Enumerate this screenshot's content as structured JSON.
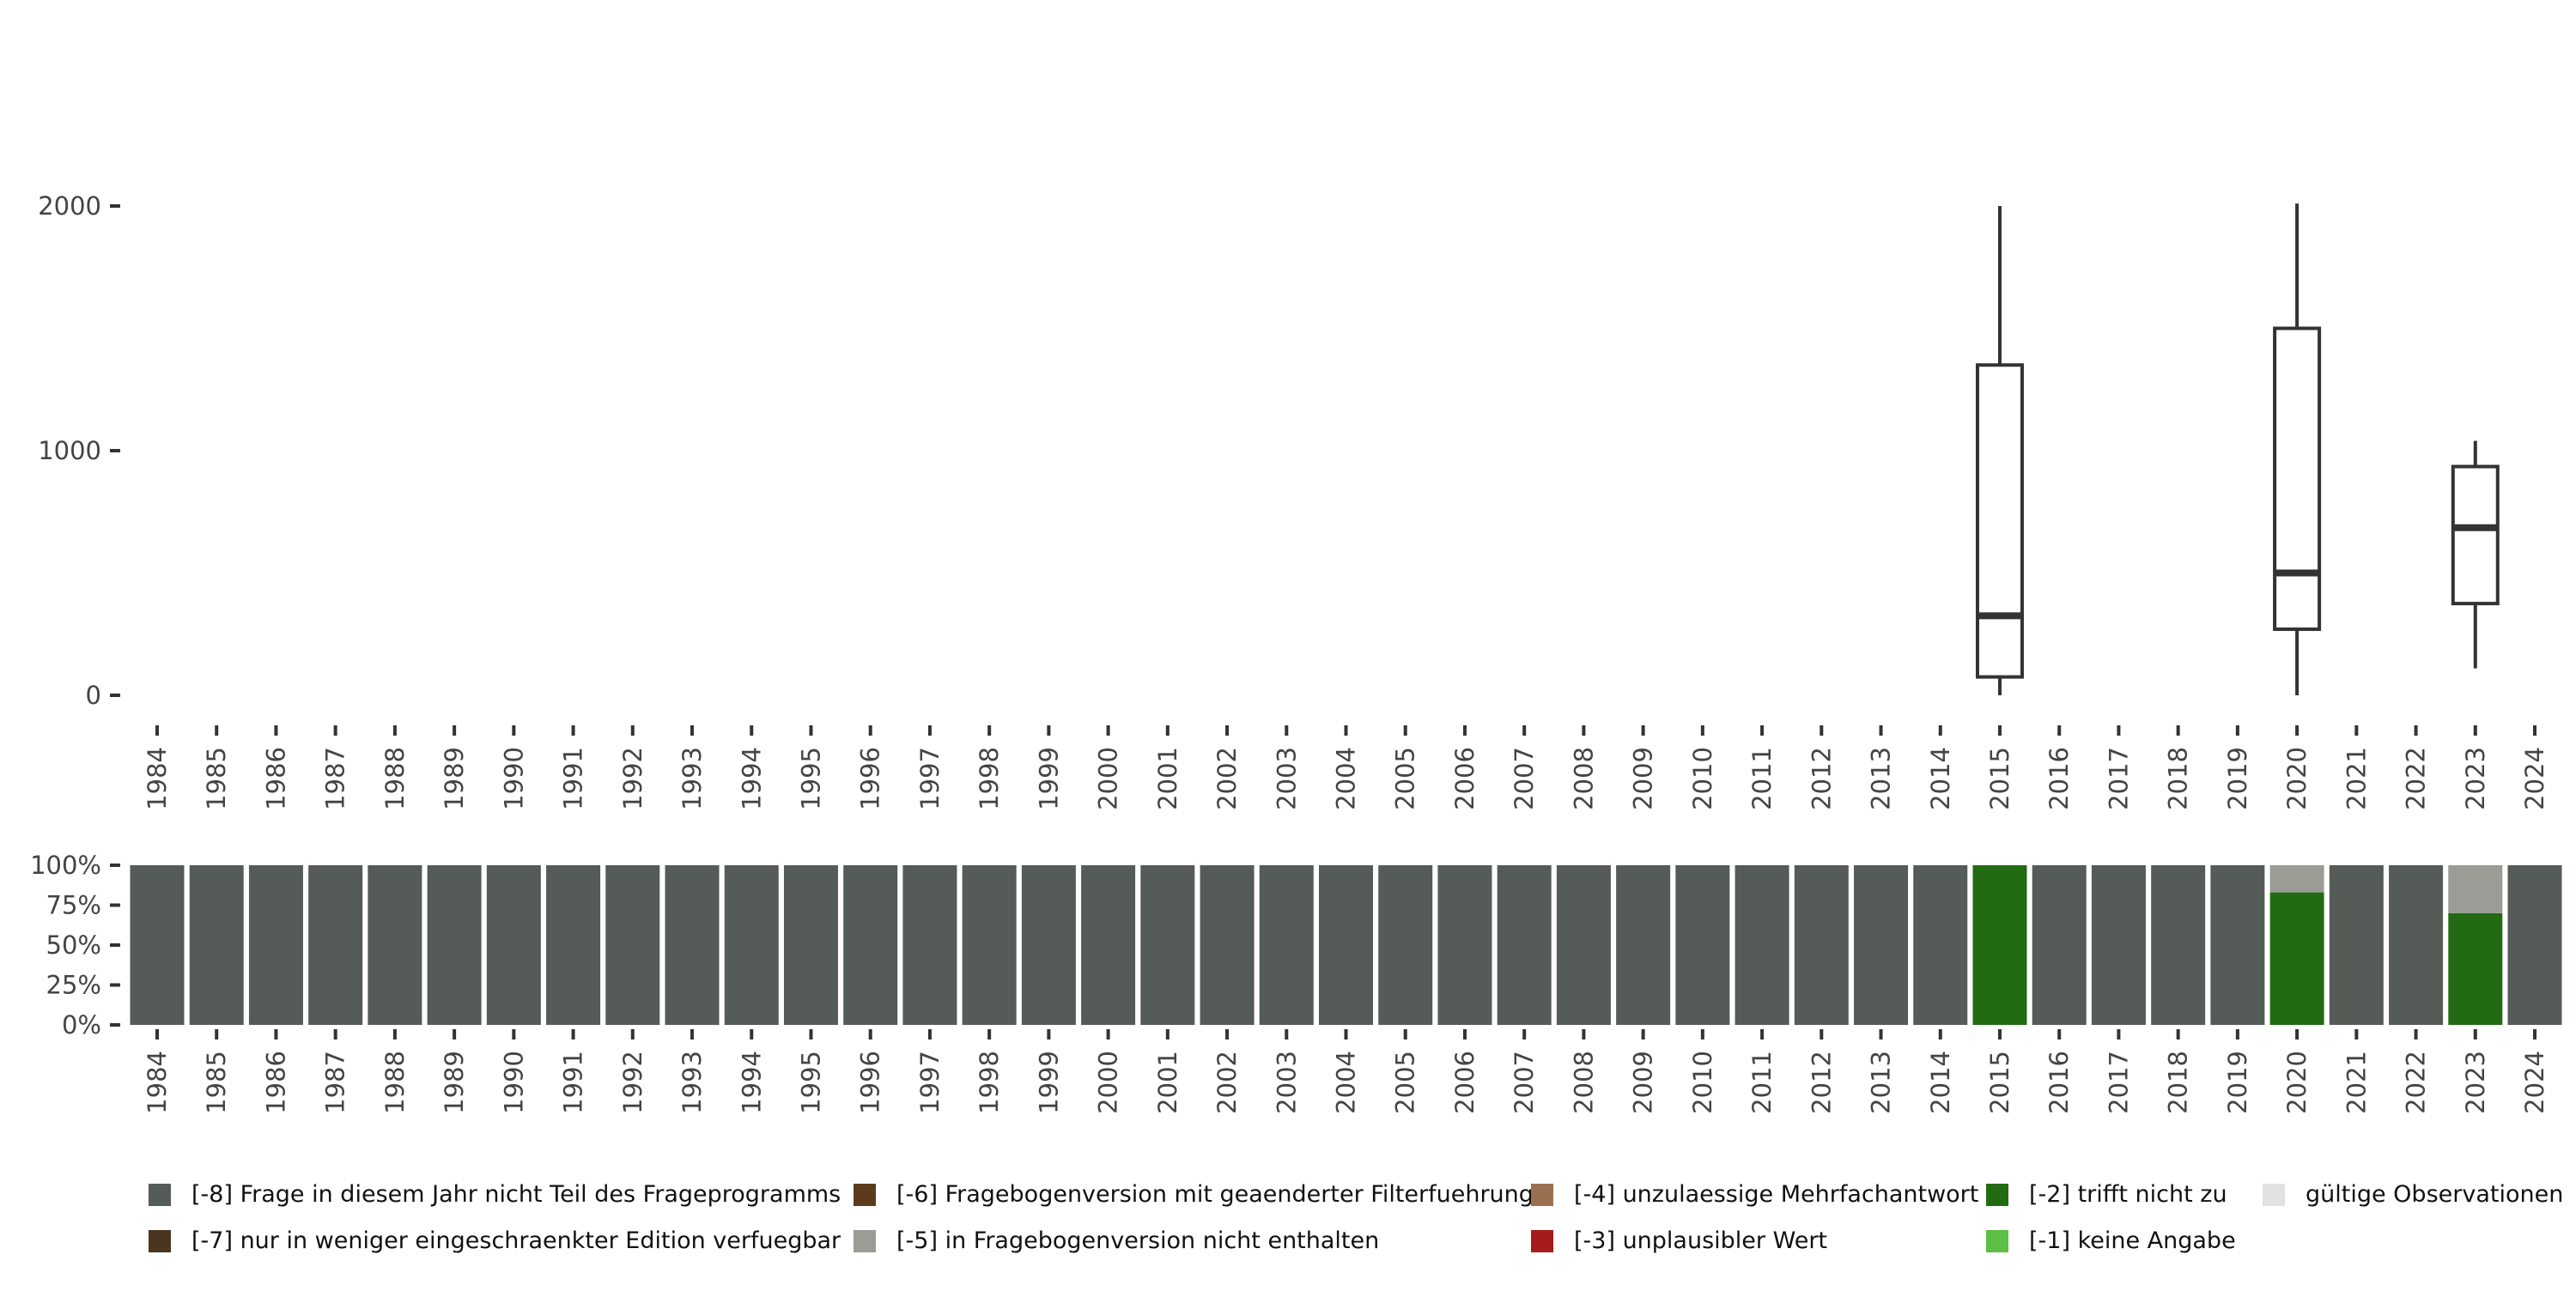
{
  "chart_data": [
    {
      "type": "boxplot",
      "years": [
        "1984",
        "1985",
        "1986",
        "1987",
        "1988",
        "1989",
        "1990",
        "1991",
        "1992",
        "1993",
        "1994",
        "1995",
        "1996",
        "1997",
        "1998",
        "1999",
        "2000",
        "2001",
        "2002",
        "2003",
        "2004",
        "2005",
        "2006",
        "2007",
        "2008",
        "2009",
        "2010",
        "2011",
        "2012",
        "2013",
        "2014",
        "2015",
        "2016",
        "2017",
        "2018",
        "2019",
        "2020",
        "2021",
        "2022",
        "2023",
        "2024"
      ],
      "ylim": [
        0,
        2000
      ],
      "yticks": [
        0,
        1000,
        2000
      ],
      "ytick_labels": [
        "0",
        "1000",
        "2000"
      ],
      "boxes": [
        {
          "year": "2015",
          "min": 0,
          "q1": 75,
          "median": 325,
          "q3": 1350,
          "max": 2000
        },
        {
          "year": "2020",
          "min": 0,
          "q1": 270,
          "median": 500,
          "q3": 1500,
          "max": 2010
        },
        {
          "year": "2023",
          "min": 110,
          "q1": 375,
          "median": 685,
          "q3": 935,
          "max": 1040
        }
      ],
      "colors": {
        "box_line": "#333333",
        "box_fill": "#ffffff"
      }
    },
    {
      "type": "bar",
      "stacked": true,
      "years": [
        "1984",
        "1985",
        "1986",
        "1987",
        "1988",
        "1989",
        "1990",
        "1991",
        "1992",
        "1993",
        "1994",
        "1995",
        "1996",
        "1997",
        "1998",
        "1999",
        "2000",
        "2001",
        "2002",
        "2003",
        "2004",
        "2005",
        "2006",
        "2007",
        "2008",
        "2009",
        "2010",
        "2011",
        "2012",
        "2013",
        "2014",
        "2015",
        "2016",
        "2017",
        "2018",
        "2019",
        "2020",
        "2021",
        "2022",
        "2023",
        "2024"
      ],
      "ylim": [
        0,
        1
      ],
      "yticks": [
        0,
        0.25,
        0.5,
        0.75,
        1
      ],
      "ytick_labels": [
        "0%",
        "25%",
        "50%",
        "75%",
        "100%"
      ],
      "default_category": "-8",
      "overrides": {
        "2015": [
          {
            "cat": "-2",
            "value": 1.0
          }
        ],
        "2020": [
          {
            "cat": "-2",
            "value": 0.83
          },
          {
            "cat": "-5",
            "value": 0.17
          }
        ],
        "2023": [
          {
            "cat": "-2",
            "value": 0.7
          },
          {
            "cat": "-5",
            "value": 0.3
          }
        ]
      },
      "legend": [
        {
          "cat": "-8",
          "label": "[-8] Frage in diesem Jahr nicht Teil des Frageprogramms",
          "color": "#555b56"
        },
        {
          "cat": "-7",
          "label": "[-7] nur in weniger eingeschraenkter Edition verfuegbar",
          "color": "#4a3520"
        },
        {
          "cat": "-6",
          "label": "[-6] Fragebogenversion mit geaenderter Filterfuehrung",
          "color": "#5c3b1c"
        },
        {
          "cat": "-5",
          "label": "[-5] in Fragebogenversion nicht enthalten",
          "color": "#9a9c95"
        },
        {
          "cat": "-4",
          "label": "[-4] unzulaessige Mehrfachantwort",
          "color": "#9a7050"
        },
        {
          "cat": "-3",
          "label": "[-3] unplausibler Wert",
          "color": "#a61c1c"
        },
        {
          "cat": "-2",
          "label": "[-2] trifft nicht zu",
          "color": "#226b12"
        },
        {
          "cat": "-1",
          "label": "[-1] keine Angabe",
          "color": "#5dbf45"
        },
        {
          "cat": "valid",
          "label": "gültige Observationen",
          "color": "#e0e3df"
        }
      ],
      "legend_placement": "bottom"
    }
  ]
}
